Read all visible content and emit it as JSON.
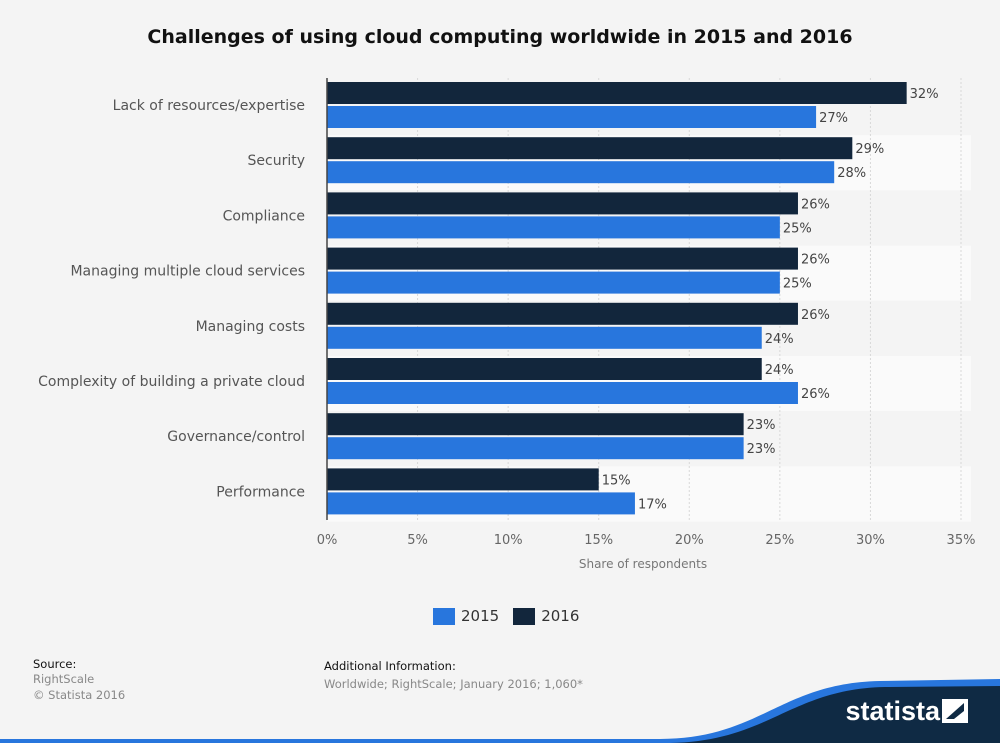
{
  "chart_data": {
    "type": "bar",
    "orientation": "horizontal",
    "title": "Challenges of using cloud computing worldwide in 2015 and 2016",
    "xlabel": "Share of respondents",
    "ylabel": "",
    "xlim": [
      0,
      35
    ],
    "ticks": [
      "0%",
      "5%",
      "10%",
      "15%",
      "20%",
      "25%",
      "30%",
      "35%"
    ],
    "grid": true,
    "legend_position": "bottom",
    "categories": [
      "Lack of resources/expertise",
      "Security",
      "Compliance",
      "Managing multiple cloud services",
      "Managing costs",
      "Complexity of building a private cloud",
      "Governance/control",
      "Performance"
    ],
    "series": [
      {
        "name": "2016",
        "color": "#12263c",
        "values": [
          32,
          29,
          26,
          26,
          26,
          24,
          23,
          15
        ]
      },
      {
        "name": "2015",
        "color": "#2876dd",
        "values": [
          27,
          28,
          25,
          25,
          24,
          26,
          23,
          17
        ]
      }
    ]
  },
  "legend": [
    {
      "label": "2015",
      "color": "#2876dd"
    },
    {
      "label": "2016",
      "color": "#12263c"
    }
  ],
  "footer": {
    "source_label": "Source:",
    "source_value": "RightScale",
    "copyright": "© Statista 2016",
    "info_label": "Additional Information:",
    "info_value": "Worldwide; RightScale; January 2016; 1,060*"
  },
  "logo": "statista"
}
